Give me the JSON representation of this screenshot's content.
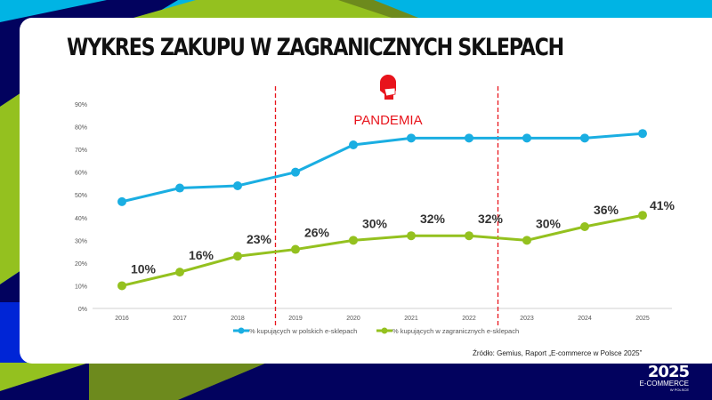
{
  "title": "WYKRES ZAKUPU W ZAGRANICZNYCH SKLEPACH",
  "annotation": {
    "label": "PANDEMIA",
    "icon": "masked-person-icon",
    "color": "#e8141c",
    "from": "2018",
    "to": "2022"
  },
  "source": "Źródło: Gemius, Raport „E-commerce w Polsce 2025”",
  "logo": {
    "year": "2025",
    "name": "E-COMMERCE",
    "sub": "W POLSCE"
  },
  "colors": {
    "blue": "#1aaee2",
    "green": "#94c11f",
    "navy": "#02025e",
    "cyan": "#00b4e4"
  },
  "chart_data": {
    "type": "line",
    "categories": [
      "2016",
      "2017",
      "2018",
      "2019",
      "2020",
      "2021",
      "2022",
      "2023",
      "2024",
      "2025"
    ],
    "ylim": [
      0,
      90
    ],
    "yticks": [
      "0%",
      "10%",
      "20%",
      "30%",
      "40%",
      "50%",
      "60%",
      "70%",
      "80%",
      "90%"
    ],
    "legend_position": "bottom",
    "series": [
      {
        "name": "% kupujących w polskich e-sklepach",
        "color": "#1aaee2",
        "values": [
          47,
          53,
          54,
          60,
          72,
          75,
          75,
          75,
          75,
          77
        ],
        "labels": []
      },
      {
        "name": "% kupujących w zagranicznych e-sklepach",
        "color": "#94c11f",
        "values": [
          10,
          16,
          23,
          26,
          30,
          32,
          32,
          30,
          36,
          41
        ],
        "labels": [
          "10%",
          "16%",
          "23%",
          "26%",
          "30%",
          "32%",
          "32%",
          "30%",
          "36%",
          "41%"
        ]
      }
    ]
  }
}
